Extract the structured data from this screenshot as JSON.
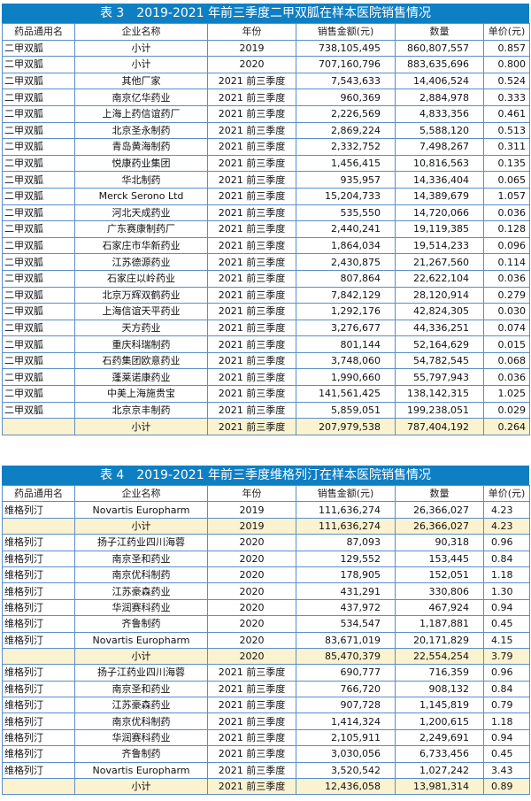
{
  "table3": {
    "title": "表 3　2019-2021 年前三季度二甲双胍在样本医院销售情况",
    "headers": [
      "药品通用名",
      "企业名称",
      "年份",
      "销售金额(元)",
      "数量",
      "单价(元)"
    ],
    "rows": [
      {
        "drug": "二甲双胍",
        "company": "小计",
        "year": "2019",
        "sales": "738,105,495",
        "qty": "860,807,557",
        "unit": "0.857",
        "subtotal": false
      },
      {
        "drug": "二甲双胍",
        "company": "小计",
        "year": "2020",
        "sales": "707,160,796",
        "qty": "883,635,696",
        "unit": "0.800",
        "subtotal": false
      },
      {
        "drug": "二甲双胍",
        "company": "其他厂家",
        "year": "2021 前三季度",
        "sales": "7,543,633",
        "qty": "14,406,524",
        "unit": "0.524",
        "subtotal": false
      },
      {
        "drug": "二甲双胍",
        "company": "南京亿华药业",
        "year": "2021 前三季度",
        "sales": "960,369",
        "qty": "2,884,978",
        "unit": "0.333",
        "subtotal": false
      },
      {
        "drug": "二甲双胍",
        "company": "上海上药信谊药厂",
        "year": "2021 前三季度",
        "sales": "2,226,569",
        "qty": "4,833,356",
        "unit": "0.461",
        "subtotal": false
      },
      {
        "drug": "二甲双胍",
        "company": "北京圣永制药",
        "year": "2021 前三季度",
        "sales": "2,869,224",
        "qty": "5,588,120",
        "unit": "0.513",
        "subtotal": false
      },
      {
        "drug": "二甲双胍",
        "company": "青岛黄海制药",
        "year": "2021 前三季度",
        "sales": "2,332,752",
        "qty": "7,498,267",
        "unit": "0.311",
        "subtotal": false
      },
      {
        "drug": "二甲双胍",
        "company": "悦康药业集团",
        "year": "2021 前三季度",
        "sales": "1,456,415",
        "qty": "10,816,563",
        "unit": "0.135",
        "subtotal": false
      },
      {
        "drug": "二甲双胍",
        "company": "华北制药",
        "year": "2021 前三季度",
        "sales": "935,957",
        "qty": "14,336,404",
        "unit": "0.065",
        "subtotal": false
      },
      {
        "drug": "二甲双胍",
        "company": "Merck Serono Ltd",
        "year": "2021 前三季度",
        "sales": "15,204,733",
        "qty": "14,389,679",
        "unit": "1.057",
        "subtotal": false
      },
      {
        "drug": "二甲双胍",
        "company": "河北天成药业",
        "year": "2021 前三季度",
        "sales": "535,550",
        "qty": "14,720,066",
        "unit": "0.036",
        "subtotal": false
      },
      {
        "drug": "二甲双胍",
        "company": "广东赛康制药厂",
        "year": "2021 前三季度",
        "sales": "2,440,241",
        "qty": "19,119,385",
        "unit": "0.128",
        "subtotal": false
      },
      {
        "drug": "二甲双胍",
        "company": "石家庄市华新药业",
        "year": "2021 前三季度",
        "sales": "1,864,034",
        "qty": "19,514,233",
        "unit": "0.096",
        "subtotal": false
      },
      {
        "drug": "二甲双胍",
        "company": "江苏德源药业",
        "year": "2021 前三季度",
        "sales": "2,430,875",
        "qty": "21,267,560",
        "unit": "0.114",
        "subtotal": false
      },
      {
        "drug": "二甲双胍",
        "company": "石家庄以岭药业",
        "year": "2021 前三季度",
        "sales": "807,864",
        "qty": "22,622,104",
        "unit": "0.036",
        "subtotal": false
      },
      {
        "drug": "二甲双胍",
        "company": "北京万辉双鹤药业",
        "year": "2021 前三季度",
        "sales": "7,842,129",
        "qty": "28,120,914",
        "unit": "0.279",
        "subtotal": false
      },
      {
        "drug": "二甲双胍",
        "company": "上海信谊天平药业",
        "year": "2021 前三季度",
        "sales": "1,292,176",
        "qty": "42,824,305",
        "unit": "0.030",
        "subtotal": false
      },
      {
        "drug": "二甲双胍",
        "company": "天方药业",
        "year": "2021 前三季度",
        "sales": "3,276,677",
        "qty": "44,336,251",
        "unit": "0.074",
        "subtotal": false
      },
      {
        "drug": "二甲双胍",
        "company": "重庆科瑞制药",
        "year": "2021 前三季度",
        "sales": "801,144",
        "qty": "52,164,629",
        "unit": "0.015",
        "subtotal": false
      },
      {
        "drug": "二甲双胍",
        "company": "石药集团欧意药业",
        "year": "2021 前三季度",
        "sales": "3,748,060",
        "qty": "54,782,545",
        "unit": "0.068",
        "subtotal": false
      },
      {
        "drug": "二甲双胍",
        "company": "蓬莱诺康药业",
        "year": "2021 前三季度",
        "sales": "1,990,660",
        "qty": "55,797,943",
        "unit": "0.036",
        "subtotal": false
      },
      {
        "drug": "二甲双胍",
        "company": "中美上海施贵宝",
        "year": "2021 前三季度",
        "sales": "141,561,425",
        "qty": "138,142,315",
        "unit": "1.025",
        "subtotal": false
      },
      {
        "drug": "二甲双胍",
        "company": "北京京丰制药",
        "year": "2021 前三季度",
        "sales": "5,859,051",
        "qty": "199,238,051",
        "unit": "0.029",
        "subtotal": false
      },
      {
        "drug": "",
        "company": "小计",
        "year": "2021 前三季度",
        "sales": "207,979,538",
        "qty": "787,404,192",
        "unit": "0.264",
        "subtotal": true
      }
    ]
  },
  "table4": {
    "title": "表 4　2019-2021 年前三季度维格列汀在样本医院销售情况",
    "headers": [
      "药品通用名",
      "企业名称",
      "年份",
      "销售金额(元)",
      "数量",
      "单价(元)"
    ],
    "rows": [
      {
        "drug": "维格列汀",
        "company": "Novartis Europharm",
        "year": "2019",
        "sales": "111,636,274",
        "qty": "26,366,027",
        "unit": "4.23",
        "subtotal": false
      },
      {
        "drug": "",
        "company": "小计",
        "year": "2019",
        "sales": "111,636,274",
        "qty": "26,366,027",
        "unit": "4.23",
        "subtotal": true
      },
      {
        "drug": "维格列汀",
        "company": "扬子江药业四川海蓉",
        "year": "2020",
        "sales": "87,093",
        "qty": "90,318",
        "unit": "0.96",
        "subtotal": false
      },
      {
        "drug": "维格列汀",
        "company": "南京圣和药业",
        "year": "2020",
        "sales": "129,552",
        "qty": "153,445",
        "unit": "0.84",
        "subtotal": false
      },
      {
        "drug": "维格列汀",
        "company": "南京优科制药",
        "year": "2020",
        "sales": "178,905",
        "qty": "152,051",
        "unit": "1.18",
        "subtotal": false
      },
      {
        "drug": "维格列汀",
        "company": "江苏豪森药业",
        "year": "2020",
        "sales": "431,291",
        "qty": "330,806",
        "unit": "1.30",
        "subtotal": false
      },
      {
        "drug": "维格列汀",
        "company": "华润赛科药业",
        "year": "2020",
        "sales": "437,972",
        "qty": "467,924",
        "unit": "0.94",
        "subtotal": false
      },
      {
        "drug": "维格列汀",
        "company": "齐鲁制药",
        "year": "2020",
        "sales": "534,547",
        "qty": "1,187,881",
        "unit": "0.45",
        "subtotal": false
      },
      {
        "drug": "维格列汀",
        "company": "Novartis Europharm",
        "year": "2020",
        "sales": "83,671,019",
        "qty": "20,171,829",
        "unit": "4.15",
        "subtotal": false
      },
      {
        "drug": "",
        "company": "小计",
        "year": "2020",
        "sales": "85,470,379",
        "qty": "22,554,254",
        "unit": "3.79",
        "subtotal": true
      },
      {
        "drug": "维格列汀",
        "company": "扬子江药业四川海蓉",
        "year": "2021 前三季度",
        "sales": "690,777",
        "qty": "716,359",
        "unit": "0.96",
        "subtotal": false
      },
      {
        "drug": "维格列汀",
        "company": "南京圣和药业",
        "year": "2021 前三季度",
        "sales": "766,720",
        "qty": "908,132",
        "unit": "0.84",
        "subtotal": false
      },
      {
        "drug": "维格列汀",
        "company": "江苏豪森药业",
        "year": "2021 前三季度",
        "sales": "907,728",
        "qty": "1,145,819",
        "unit": "0.79",
        "subtotal": false
      },
      {
        "drug": "维格列汀",
        "company": "南京优科制药",
        "year": "2021 前三季度",
        "sales": "1,414,324",
        "qty": "1,200,615",
        "unit": "1.18",
        "subtotal": false
      },
      {
        "drug": "维格列汀",
        "company": "华润赛科药业",
        "year": "2021 前三季度",
        "sales": "2,105,911",
        "qty": "2,249,691",
        "unit": "0.94",
        "subtotal": false
      },
      {
        "drug": "维格列汀",
        "company": "齐鲁制药",
        "year": "2021 前三季度",
        "sales": "3,030,056",
        "qty": "6,733,456",
        "unit": "0.45",
        "subtotal": false
      },
      {
        "drug": "维格列汀",
        "company": "Novartis Europharm",
        "year": "2021 前三季度",
        "sales": "3,520,542",
        "qty": "1,027,242",
        "unit": "3.43",
        "subtotal": false
      },
      {
        "drug": "",
        "company": "小计",
        "year": "2021 前三季度",
        "sales": "12,436,058",
        "qty": "13,981,314",
        "unit": "0.89",
        "subtotal": true
      }
    ]
  }
}
